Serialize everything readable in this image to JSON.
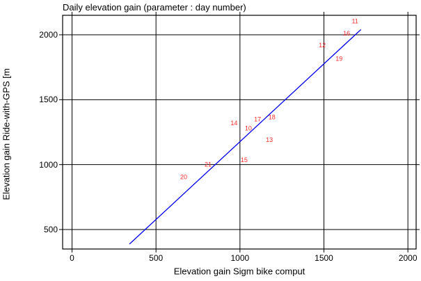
{
  "chart_data": {
    "type": "scatter",
    "title": "Daily elevation gain (parameter : day number)",
    "xlabel": "Elevation gain Sigm bike comput",
    "ylabel": "Elevation gain Ride-with-GPS [m",
    "xlim": [
      -56,
      2049
    ],
    "ylim": [
      350,
      2150
    ],
    "x_ticks": [
      0,
      500,
      1000,
      1500,
      2000
    ],
    "y_ticks": [
      500,
      1000,
      1500,
      2000
    ],
    "grid": true,
    "legend": "none",
    "point_label_color": "#ff2b2b",
    "line_color": "#0000ee",
    "axis_color": "#000000",
    "points": [
      {
        "label": "10",
        "x": 1050,
        "y": 1280
      },
      {
        "label": "11",
        "x": 1685,
        "y": 2105
      },
      {
        "label": "12",
        "x": 1490,
        "y": 1920
      },
      {
        "label": "13",
        "x": 1175,
        "y": 1190
      },
      {
        "label": "14",
        "x": 965,
        "y": 1320
      },
      {
        "label": "15",
        "x": 1025,
        "y": 1035
      },
      {
        "label": "16",
        "x": 1635,
        "y": 2010
      },
      {
        "label": "17",
        "x": 1105,
        "y": 1350
      },
      {
        "label": "18",
        "x": 1190,
        "y": 1365
      },
      {
        "label": "19",
        "x": 1590,
        "y": 1815
      },
      {
        "label": "20",
        "x": 665,
        "y": 905
      },
      {
        "label": "21",
        "x": 810,
        "y": 1000
      }
    ],
    "fit_line": {
      "x1": 342,
      "y1": 388,
      "x2": 1720,
      "y2": 2040
    }
  }
}
